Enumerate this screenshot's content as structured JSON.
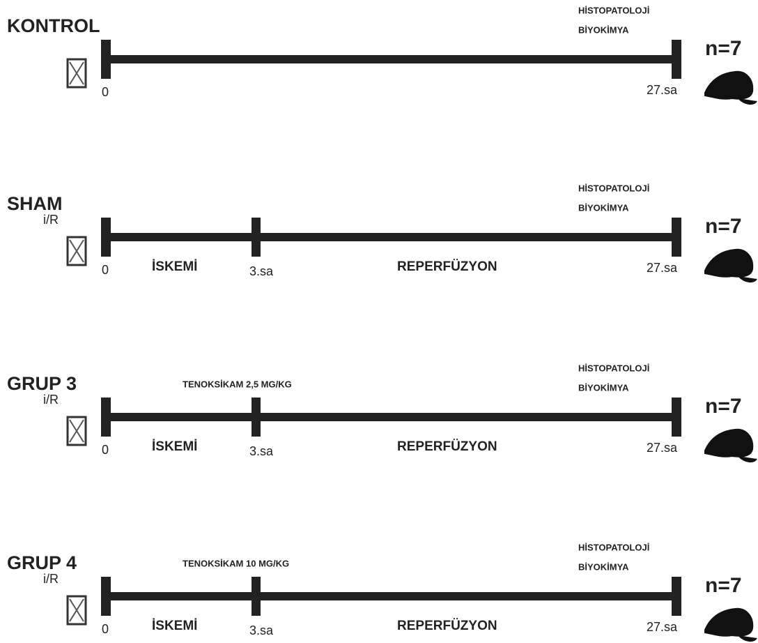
{
  "groups": [
    {
      "name": "KONTROL",
      "start": "0",
      "end": "27.sa",
      "analysis": [
        "HİSTOPATOLOJİ",
        "BİYOKİMYA"
      ],
      "n": "n=7"
    },
    {
      "name": "SHAM",
      "model": "i/R",
      "start": "0",
      "phase1": "İSKEMİ",
      "mid": "3.sa",
      "phase2": "REPERFÜZYON",
      "end": "27.sa",
      "analysis": [
        "HİSTOPATOLOJİ",
        "BİYOKİMYA"
      ],
      "n": "n=7"
    },
    {
      "name": "GRUP 3",
      "model": "i/R",
      "drug": "TENOKSİKAM 2,5 MG/KG",
      "start": "0",
      "phase1": "İSKEMİ",
      "mid": "3.sa",
      "phase2": "REPERFÜZYON",
      "end": "27.sa",
      "analysis": [
        "HİSTOPATOLOJİ",
        "BİYOKİMYA"
      ],
      "n": "n=7"
    },
    {
      "name": "GRUP 4",
      "model": "i/R",
      "drug": "TENOKSİKAM 10 MG/KG",
      "start": "0",
      "phase1": "İSKEMİ",
      "mid": "3.sa",
      "phase2": "REPERFÜZYON",
      "end": "27.sa",
      "analysis": [
        "HİSTOPATOLOJİ",
        "BİYOKİMYA"
      ],
      "n": "n=7"
    }
  ]
}
